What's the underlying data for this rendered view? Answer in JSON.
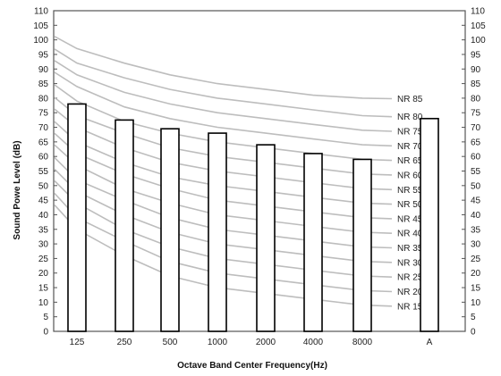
{
  "chart_data": {
    "type": "bar",
    "xlabel": "Octave Band Center Frequency(Hz)",
    "ylabel": "Sound Powe  Level (dB)",
    "ylim": [
      0,
      110
    ],
    "yticks": [
      "0",
      "5",
      "10",
      "15",
      "20",
      "25",
      "30",
      "35",
      "40",
      "45",
      "50",
      "55",
      "60",
      "65",
      "70",
      "75",
      "80",
      "85",
      "90",
      "95",
      "100",
      "105",
      "110"
    ],
    "categories": [
      "125",
      "250",
      "500",
      "1000",
      "2000",
      "4000",
      "8000"
    ],
    "values": [
      78,
      72.5,
      69.5,
      68,
      64,
      61,
      59
    ],
    "overall": {
      "label": "A",
      "value": 73
    },
    "curve_frequencies": [
      "63",
      "125",
      "250",
      "500",
      "1000",
      "2000",
      "4000",
      "8000"
    ],
    "nr_curves": [
      {
        "name": "NR 85",
        "values": [
          103,
          97,
          92,
          88,
          85,
          83,
          81,
          80
        ]
      },
      {
        "name": "NR 80",
        "values": [
          99,
          92,
          87,
          83,
          80,
          78,
          76,
          74
        ]
      },
      {
        "name": "NR 75",
        "values": [
          95,
          88,
          82,
          78,
          75,
          73,
          71,
          69
        ]
      },
      {
        "name": "NR 70",
        "values": [
          91,
          84,
          77,
          73,
          70,
          68,
          66,
          64
        ]
      },
      {
        "name": "NR 65",
        "values": [
          87,
          79,
          72,
          68,
          65,
          63,
          61,
          59
        ]
      },
      {
        "name": "NR 60",
        "values": [
          83,
          74,
          68,
          63,
          60,
          58,
          56,
          54
        ]
      },
      {
        "name": "NR 55",
        "values": [
          79,
          70,
          63,
          58,
          55,
          53,
          51,
          49
        ]
      },
      {
        "name": "NR 50",
        "values": [
          75,
          65,
          58,
          53,
          50,
          48,
          46,
          44
        ]
      },
      {
        "name": "NR 45",
        "values": [
          71,
          61,
          54,
          49,
          45,
          43,
          41,
          39
        ]
      },
      {
        "name": "NR 40",
        "values": [
          67,
          57,
          49,
          44,
          40,
          38,
          36,
          34
        ]
      },
      {
        "name": "NR 35",
        "values": [
          63,
          52,
          45,
          39,
          35,
          33,
          31,
          29
        ]
      },
      {
        "name": "NR 30",
        "values": [
          59,
          48,
          40,
          34,
          30,
          28,
          26,
          24
        ]
      },
      {
        "name": "NR 25",
        "values": [
          55,
          44,
          35,
          29,
          25,
          23,
          21,
          19
        ]
      },
      {
        "name": "NR 20",
        "values": [
          51,
          39,
          31,
          24,
          20,
          18,
          16,
          14
        ]
      },
      {
        "name": "NR 15",
        "values": [
          47,
          35,
          26,
          19,
          15,
          13,
          11,
          9
        ]
      }
    ],
    "grid": false,
    "colors": {
      "bars_stroke": "#000000",
      "bars_fill": "#ffffff",
      "curves": "#bdbdbd",
      "frame": "#555555"
    }
  }
}
